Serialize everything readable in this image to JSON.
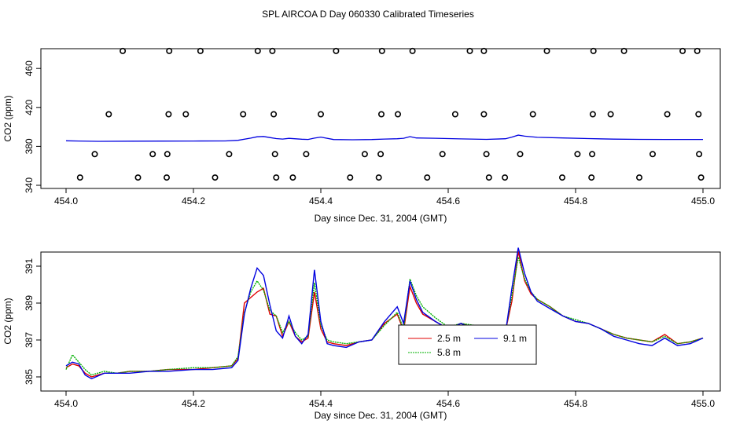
{
  "title": "SPL AIRCOA D  Day 060330  Calibrated Timeseries",
  "colors": {
    "axis": "#000000",
    "red": "#e00000",
    "green": "#00b000",
    "blue": "#0000e0"
  },
  "chart_data": [
    {
      "type": "scatter",
      "panel": "top",
      "xlabel": "Day since Dec. 31, 2004 (GMT)",
      "ylabel": "CO2 (ppm)",
      "xlim": [
        454.0,
        455.0
      ],
      "ylim": [
        335,
        483
      ],
      "xticks": [
        "454.0",
        "454.2",
        "454.4",
        "454.6",
        "454.8",
        "455.0"
      ],
      "yticks": [
        "340",
        "380",
        "420",
        "460"
      ],
      "points": {
        "x": [
          454.089,
          454.162,
          454.211,
          454.301,
          454.324,
          454.424,
          454.496,
          454.544,
          454.634,
          454.656,
          454.755,
          454.828,
          454.876,
          454.968,
          454.991,
          454.067,
          454.161,
          454.188,
          454.278,
          454.326,
          454.4,
          454.495,
          454.521,
          454.611,
          454.656,
          454.733,
          454.827,
          454.855,
          454.944,
          454.993,
          454.045,
          454.136,
          454.159,
          454.256,
          454.328,
          454.377,
          454.469,
          454.494,
          454.591,
          454.66,
          454.713,
          454.803,
          454.826,
          454.921,
          454.994,
          454.022,
          454.113,
          454.158,
          454.234,
          454.33,
          454.356,
          454.446,
          454.491,
          454.567,
          454.664,
          454.689,
          454.779,
          454.825,
          454.9,
          454.997
        ],
        "y": [
          478,
          478,
          478,
          478,
          478,
          478,
          478,
          478,
          478,
          478,
          478,
          478,
          478,
          478,
          478,
          413,
          413,
          413,
          413,
          413,
          413,
          413,
          413,
          413,
          413,
          413,
          413,
          413,
          413,
          413,
          372,
          372,
          372,
          372,
          372,
          372,
          372,
          372,
          372,
          372,
          372,
          372,
          372,
          372,
          372,
          348,
          348,
          348,
          348,
          348,
          348,
          348,
          348,
          348,
          348,
          348,
          348,
          348,
          348,
          348
        ]
      },
      "line": {
        "name": "CO2",
        "x": [
          454.0,
          454.02,
          454.05,
          454.1,
          454.15,
          454.2,
          454.25,
          454.27,
          454.29,
          454.3,
          454.31,
          454.32,
          454.33,
          454.34,
          454.35,
          454.37,
          454.38,
          454.39,
          454.4,
          454.42,
          454.45,
          454.48,
          454.5,
          454.52,
          454.53,
          454.54,
          454.55,
          454.58,
          454.62,
          454.66,
          454.69,
          454.7,
          454.71,
          454.72,
          454.74,
          454.78,
          454.82,
          454.86,
          454.9,
          454.94,
          455.0
        ],
        "y": [
          385.7,
          385.5,
          385.2,
          385.3,
          385.4,
          385.5,
          385.6,
          386.2,
          388.5,
          389.8,
          390.2,
          389.0,
          388.0,
          387.5,
          388.2,
          387.3,
          387.1,
          388.5,
          389.5,
          387.0,
          386.8,
          387.0,
          387.5,
          387.8,
          388.3,
          390.0,
          388.6,
          388.3,
          387.7,
          387.2,
          387.8,
          389.5,
          391.5,
          390.5,
          389.3,
          388.6,
          388.0,
          387.4,
          387.2,
          387.1,
          387.1
        ]
      }
    },
    {
      "type": "line",
      "panel": "bottom",
      "xlabel": "Day since Dec. 31, 2004 (GMT)",
      "ylabel": "CO2 (ppm)",
      "xlim": [
        454.0,
        455.0
      ],
      "ylim": [
        384.6,
        392.3
      ],
      "xticks": [
        "454.0",
        "454.2",
        "454.4",
        "454.6",
        "454.8",
        "455.0"
      ],
      "yticks": [
        "385",
        "387",
        "389",
        "391"
      ],
      "legend": {
        "position": "center-right",
        "entries": [
          "2.5 m",
          "5.8 m",
          "9.1 m"
        ]
      },
      "x": [
        454.0,
        454.01,
        454.02,
        454.03,
        454.04,
        454.06,
        454.08,
        454.1,
        454.13,
        454.16,
        454.2,
        454.23,
        454.26,
        454.27,
        454.28,
        454.29,
        454.3,
        454.31,
        454.32,
        454.33,
        454.34,
        454.35,
        454.36,
        454.37,
        454.38,
        454.39,
        454.4,
        454.41,
        454.42,
        454.44,
        454.46,
        454.48,
        454.5,
        454.52,
        454.53,
        454.54,
        454.55,
        454.56,
        454.58,
        454.6,
        454.62,
        454.64,
        454.66,
        454.68,
        454.69,
        454.7,
        454.71,
        454.72,
        454.73,
        454.74,
        454.76,
        454.78,
        454.8,
        454.82,
        454.84,
        454.86,
        454.88,
        454.9,
        454.92,
        454.94,
        454.96,
        454.98,
        455.0
      ],
      "series": [
        {
          "name": "2.5 m",
          "color": "#e00000",
          "values": [
            385.5,
            385.7,
            385.6,
            385.2,
            385.0,
            385.2,
            385.2,
            385.3,
            385.3,
            385.4,
            385.4,
            385.5,
            385.6,
            386.0,
            389.0,
            389.3,
            389.6,
            389.8,
            388.4,
            388.3,
            387.2,
            388.0,
            387.2,
            386.9,
            387.1,
            389.6,
            387.6,
            386.9,
            386.8,
            386.7,
            386.9,
            387.0,
            387.9,
            388.4,
            387.5,
            389.9,
            389.0,
            388.4,
            388.0,
            387.6,
            387.9,
            387.7,
            387.4,
            387.5,
            387.5,
            389.1,
            391.8,
            390.2,
            389.5,
            389.2,
            388.8,
            388.3,
            388.0,
            387.9,
            387.6,
            387.3,
            387.1,
            387.0,
            386.9,
            387.3,
            386.8,
            386.9,
            387.1
          ]
        },
        {
          "name": "5.8 m",
          "color": "#00b000",
          "values": [
            385.4,
            386.2,
            385.8,
            385.4,
            385.1,
            385.3,
            385.2,
            385.3,
            385.3,
            385.4,
            385.5,
            385.5,
            385.6,
            386.1,
            388.5,
            389.6,
            390.2,
            389.7,
            388.6,
            388.3,
            387.4,
            388.0,
            387.4,
            387.0,
            387.2,
            390.1,
            387.8,
            387.0,
            386.9,
            386.8,
            386.9,
            387.0,
            387.8,
            388.5,
            387.6,
            390.3,
            389.4,
            388.8,
            388.2,
            387.7,
            387.9,
            387.8,
            387.4,
            387.5,
            387.5,
            389.4,
            391.5,
            390.3,
            389.6,
            389.2,
            388.8,
            388.3,
            388.1,
            387.9,
            387.6,
            387.3,
            387.1,
            387.0,
            386.9,
            387.2,
            386.8,
            386.9,
            387.1
          ]
        },
        {
          "name": "9.1 m",
          "color": "#0000e0",
          "values": [
            385.6,
            385.8,
            385.7,
            385.1,
            384.9,
            385.2,
            385.2,
            385.2,
            385.3,
            385.3,
            385.4,
            385.4,
            385.5,
            385.9,
            388.4,
            389.8,
            390.9,
            390.5,
            388.9,
            387.5,
            387.1,
            388.3,
            387.2,
            386.8,
            387.3,
            390.8,
            388.0,
            386.8,
            386.7,
            386.6,
            386.9,
            387.0,
            388.0,
            388.8,
            387.9,
            390.2,
            389.2,
            388.5,
            388.0,
            387.6,
            387.9,
            387.6,
            387.3,
            387.3,
            387.4,
            389.8,
            392.0,
            390.6,
            389.6,
            389.1,
            388.7,
            388.3,
            388.0,
            387.9,
            387.6,
            387.2,
            387.0,
            386.8,
            386.7,
            387.1,
            386.7,
            386.8,
            387.1
          ]
        }
      ]
    }
  ]
}
